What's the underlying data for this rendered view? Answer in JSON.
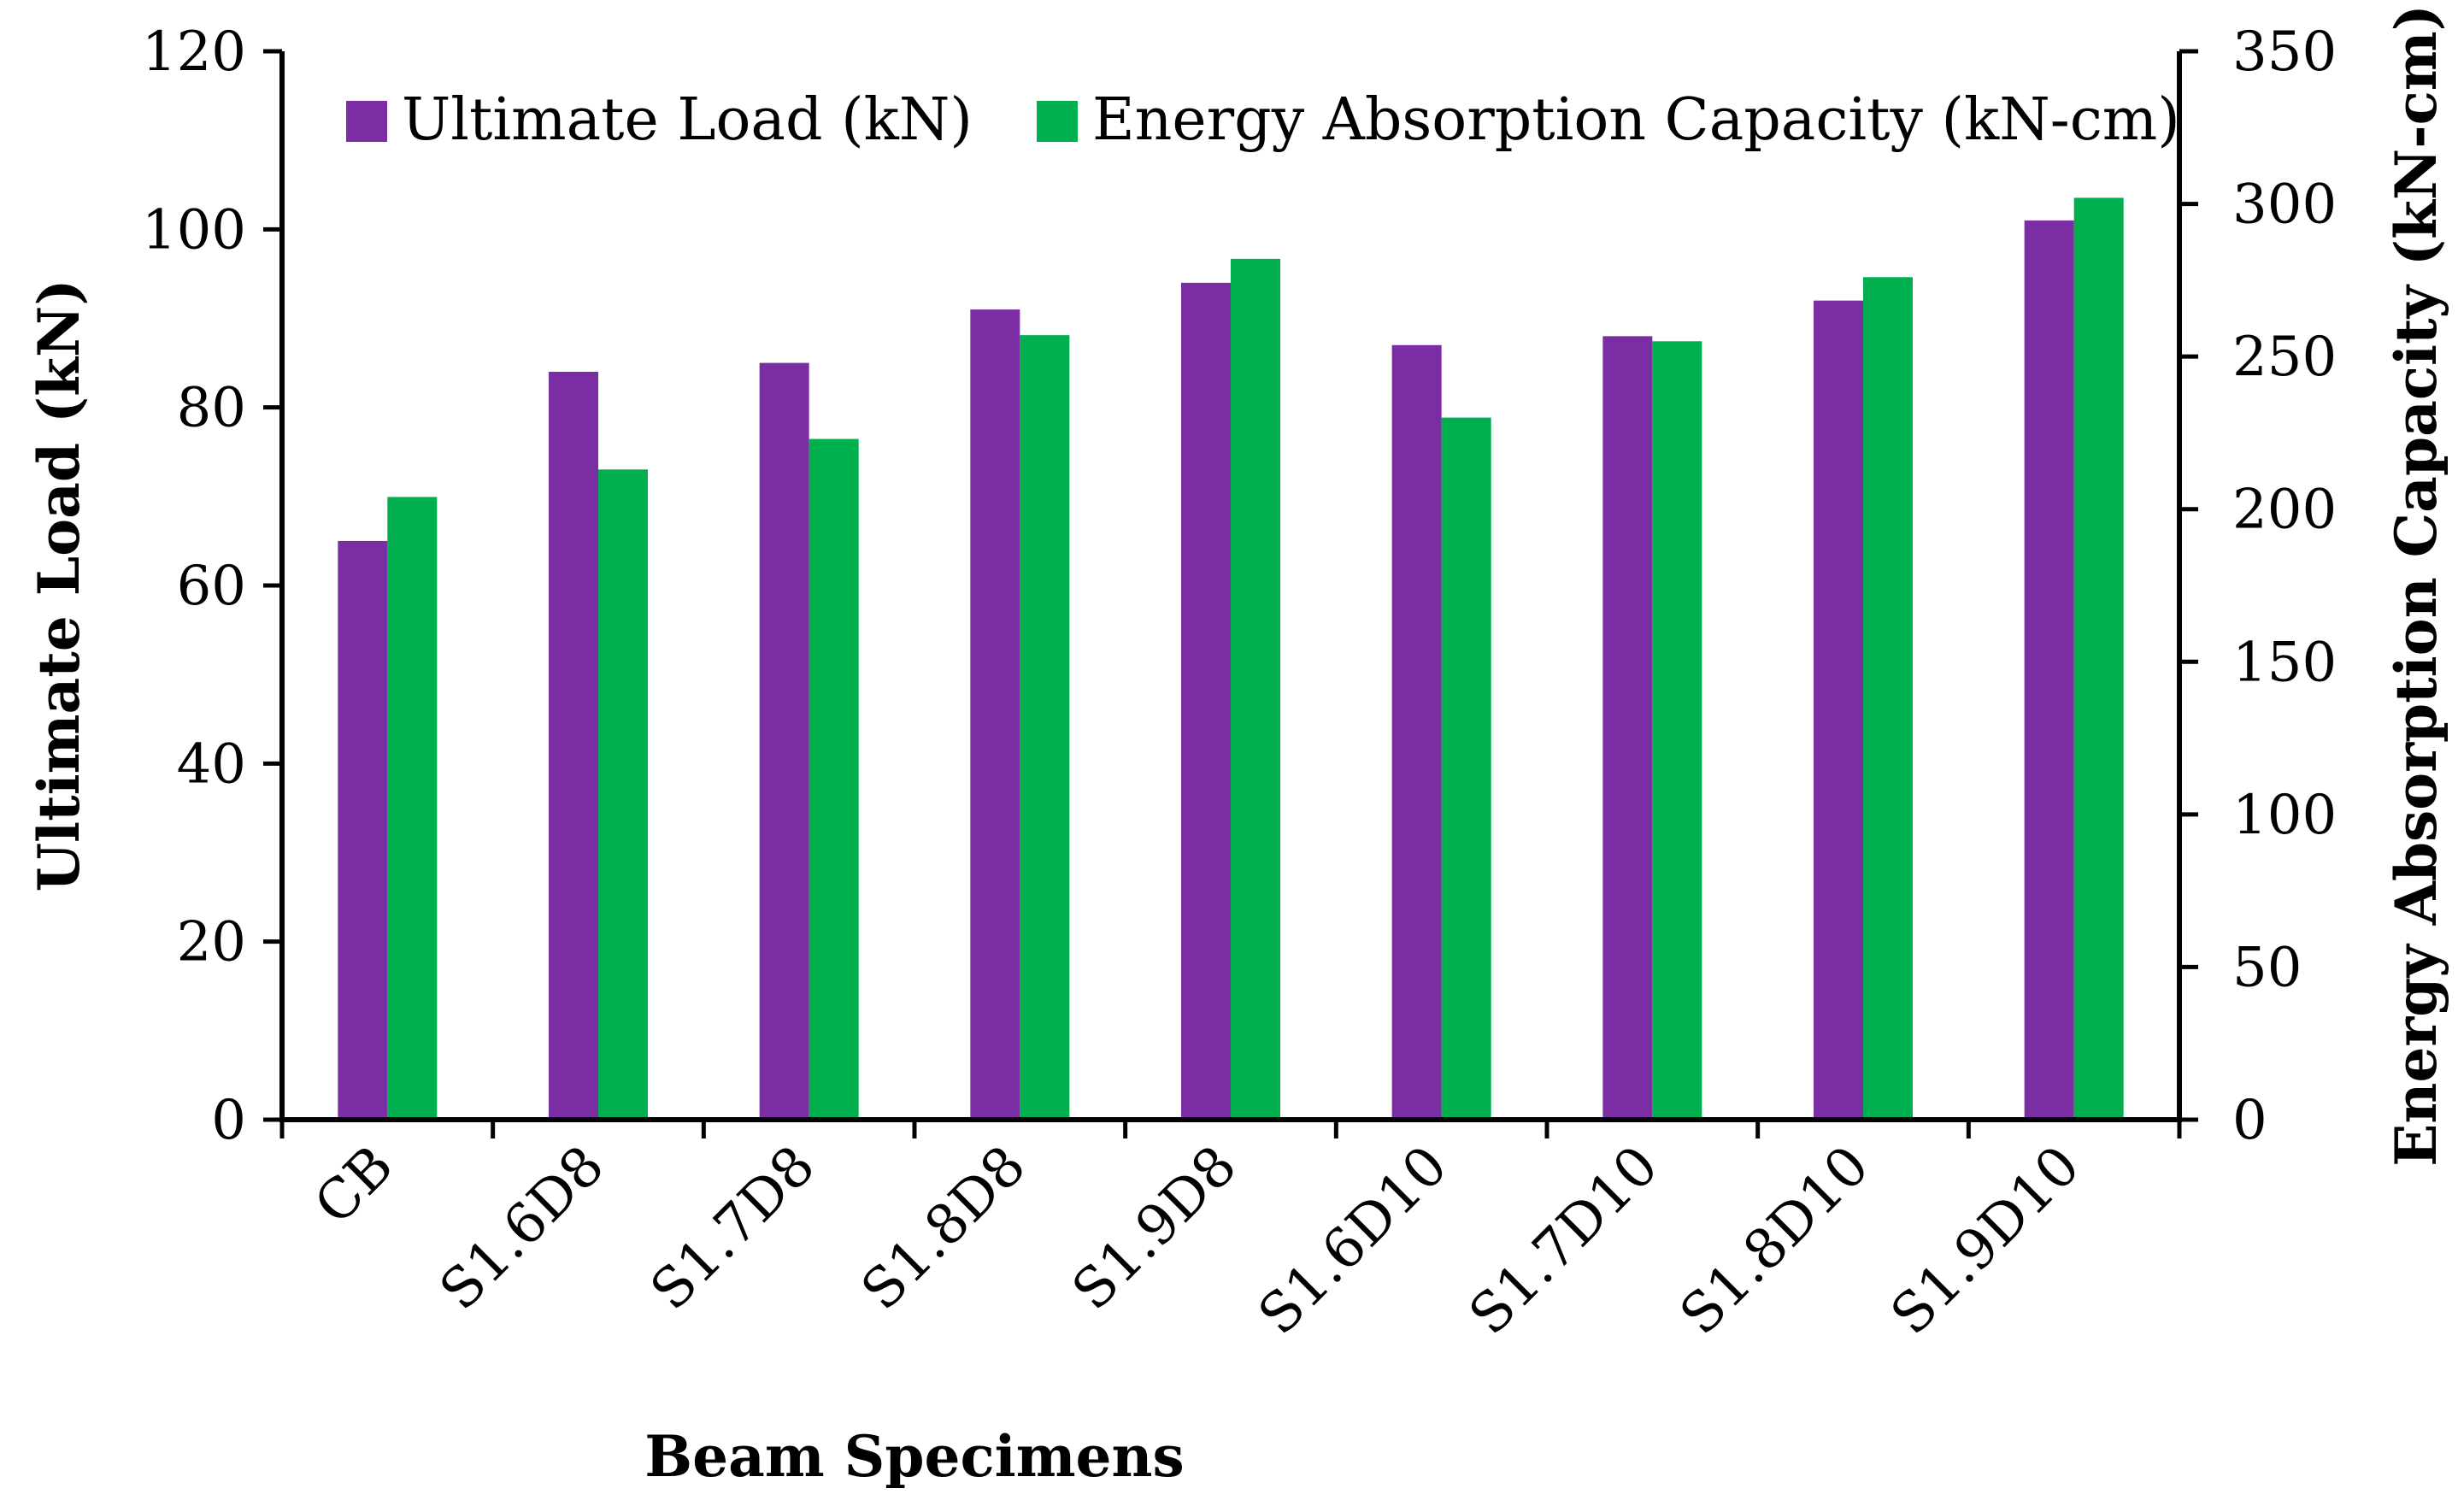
{
  "chart_data": {
    "type": "bar",
    "title": "",
    "categories": [
      "CB",
      "S1.6D8",
      "S1.7D8",
      "S1.8D8",
      "S1.9D8",
      "S1.6D10",
      "S1.7D10",
      "S1.8D10",
      "S1.9D10"
    ],
    "series": [
      {
        "name": "Ultimate Load (kN)",
        "axis": "left",
        "color": "#7B2EA4",
        "values": [
          65,
          84,
          85,
          91,
          94,
          87,
          88,
          92,
          101
        ]
      },
      {
        "name": "Energy Absorption Capacity (kN-cm)",
        "axis": "right",
        "color": "#00B04F",
        "values": [
          204,
          213,
          223,
          257,
          282,
          230,
          255,
          276,
          302
        ]
      }
    ],
    "xlabel": "Beam Specimens",
    "ylabel": "Ultimate Load (kN)",
    "y2label": "Energy Absorption Capacity (kN-cm)",
    "ylim": [
      0,
      120
    ],
    "y2lim": [
      0,
      350
    ],
    "yticks": [
      "0",
      "20",
      "40",
      "60",
      "80",
      "100",
      "120"
    ],
    "y2ticks": [
      "0",
      "50",
      "100",
      "150",
      "200",
      "250",
      "300",
      "350"
    ],
    "legend_position": "top"
  }
}
